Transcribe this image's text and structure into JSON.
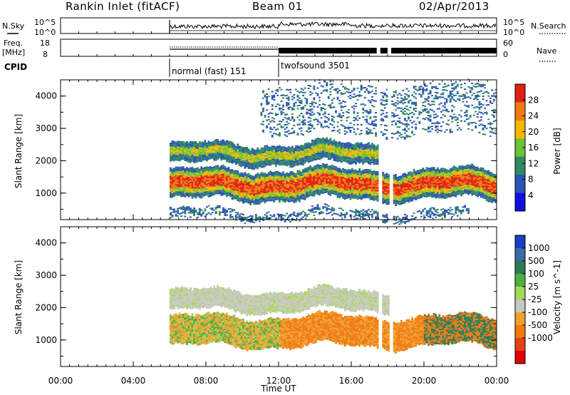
{
  "header": {
    "station": "Rankin Inlet (fitACF)",
    "beam": "Beam 01",
    "date": "02/Apr/2013"
  },
  "noise_panel": {
    "left_label": "N.Sky",
    "right_label": "N.Search",
    "left_ticks": [
      "10^5",
      "10^0"
    ],
    "right_ticks": [
      "10^5",
      "10^0"
    ]
  },
  "freq_panel": {
    "left_label_1": "Freq.",
    "left_label_2": "[MHz]",
    "right_label": "Nave",
    "left_ticks": [
      "18",
      "8"
    ],
    "right_ticks": [
      "60",
      "0"
    ]
  },
  "cpid": {
    "label": "CPID",
    "modes": [
      {
        "name": "normal (fast) 151",
        "start_hour": 6.0,
        "end_hour": 12.0
      },
      {
        "name": "twofsound 3501",
        "start_hour": 12.0,
        "end_hour": 24.0
      }
    ]
  },
  "x_axis": {
    "label": "Time UT",
    "tick_labels": [
      "00:00",
      "04:00",
      "08:00",
      "12:00",
      "16:00",
      "20:00",
      "00:00"
    ],
    "range_hours": [
      0,
      24
    ]
  },
  "power_panel": {
    "ylabel": "Slant Range [km]",
    "y_ticks": [
      "1000",
      "2000",
      "3000",
      "4000"
    ],
    "colorbar_label": "Power [dB]",
    "colorbar_ticks": [
      "4",
      "8",
      "12",
      "16",
      "20",
      "24",
      "28"
    ],
    "colorbar_colors": [
      "#1010e0",
      "#2a52b8",
      "#2f8a5f",
      "#6cc23a",
      "#f5b800",
      "#f07a10",
      "#e02010"
    ]
  },
  "velocity_panel": {
    "ylabel": "Slant Range [km]",
    "y_ticks": [
      "1000",
      "2000",
      "3000",
      "4000"
    ],
    "colorbar_label": "Velocity [m s^-1]",
    "colorbar_ticks": [
      "1000",
      "500",
      "100",
      "25",
      "-25",
      "-100",
      "-500",
      "-1000"
    ],
    "colorbar_colors": [
      "#1a3cc8",
      "#3a6aa8",
      "#2e7a55",
      "#4faf40",
      "#a6d85a",
      "#c8c8c0",
      "#f0a030",
      "#f07a10",
      "#e84010",
      "#e00000"
    ]
  },
  "chart_data": {
    "type": "heatmap",
    "x_range_hours": [
      0,
      24
    ],
    "y_range_km": [
      180,
      4500
    ],
    "data_start_hour": 6.0,
    "data_gap_hours": [
      [
        17.4,
        17.6
      ],
      [
        18.0,
        18.2
      ]
    ],
    "power_bands": [
      {
        "name": "near-range",
        "start_hour": 6.0,
        "end_hour": 22.5,
        "range_low_km": 200,
        "range_high_km": 450,
        "level": "weak"
      },
      {
        "name": "main",
        "start_hour": 6.0,
        "end_hour": 24.0,
        "range_low_km": 800,
        "range_high_km": 1700,
        "level": "strong"
      },
      {
        "name": "second-hop",
        "start_hour": 6.0,
        "end_hour": 17.4,
        "range_low_km": 1900,
        "range_high_km": 2500,
        "level": "moderate"
      },
      {
        "name": "far",
        "start_hour": 11.0,
        "end_hour": 24.0,
        "range_low_km": 2800,
        "range_high_km": 4300,
        "level": "sparse"
      }
    ],
    "velocity_bands": [
      {
        "name": "main",
        "start_hour": 6.0,
        "end_hour": 24.0,
        "range_low_km": 800,
        "range_high_km": 1700,
        "sign": "away"
      },
      {
        "name": "second-hop",
        "start_hour": 6.0,
        "end_hour": 18.0,
        "range_low_km": 1900,
        "range_high_km": 2500,
        "sign": "near-zero"
      }
    ]
  }
}
